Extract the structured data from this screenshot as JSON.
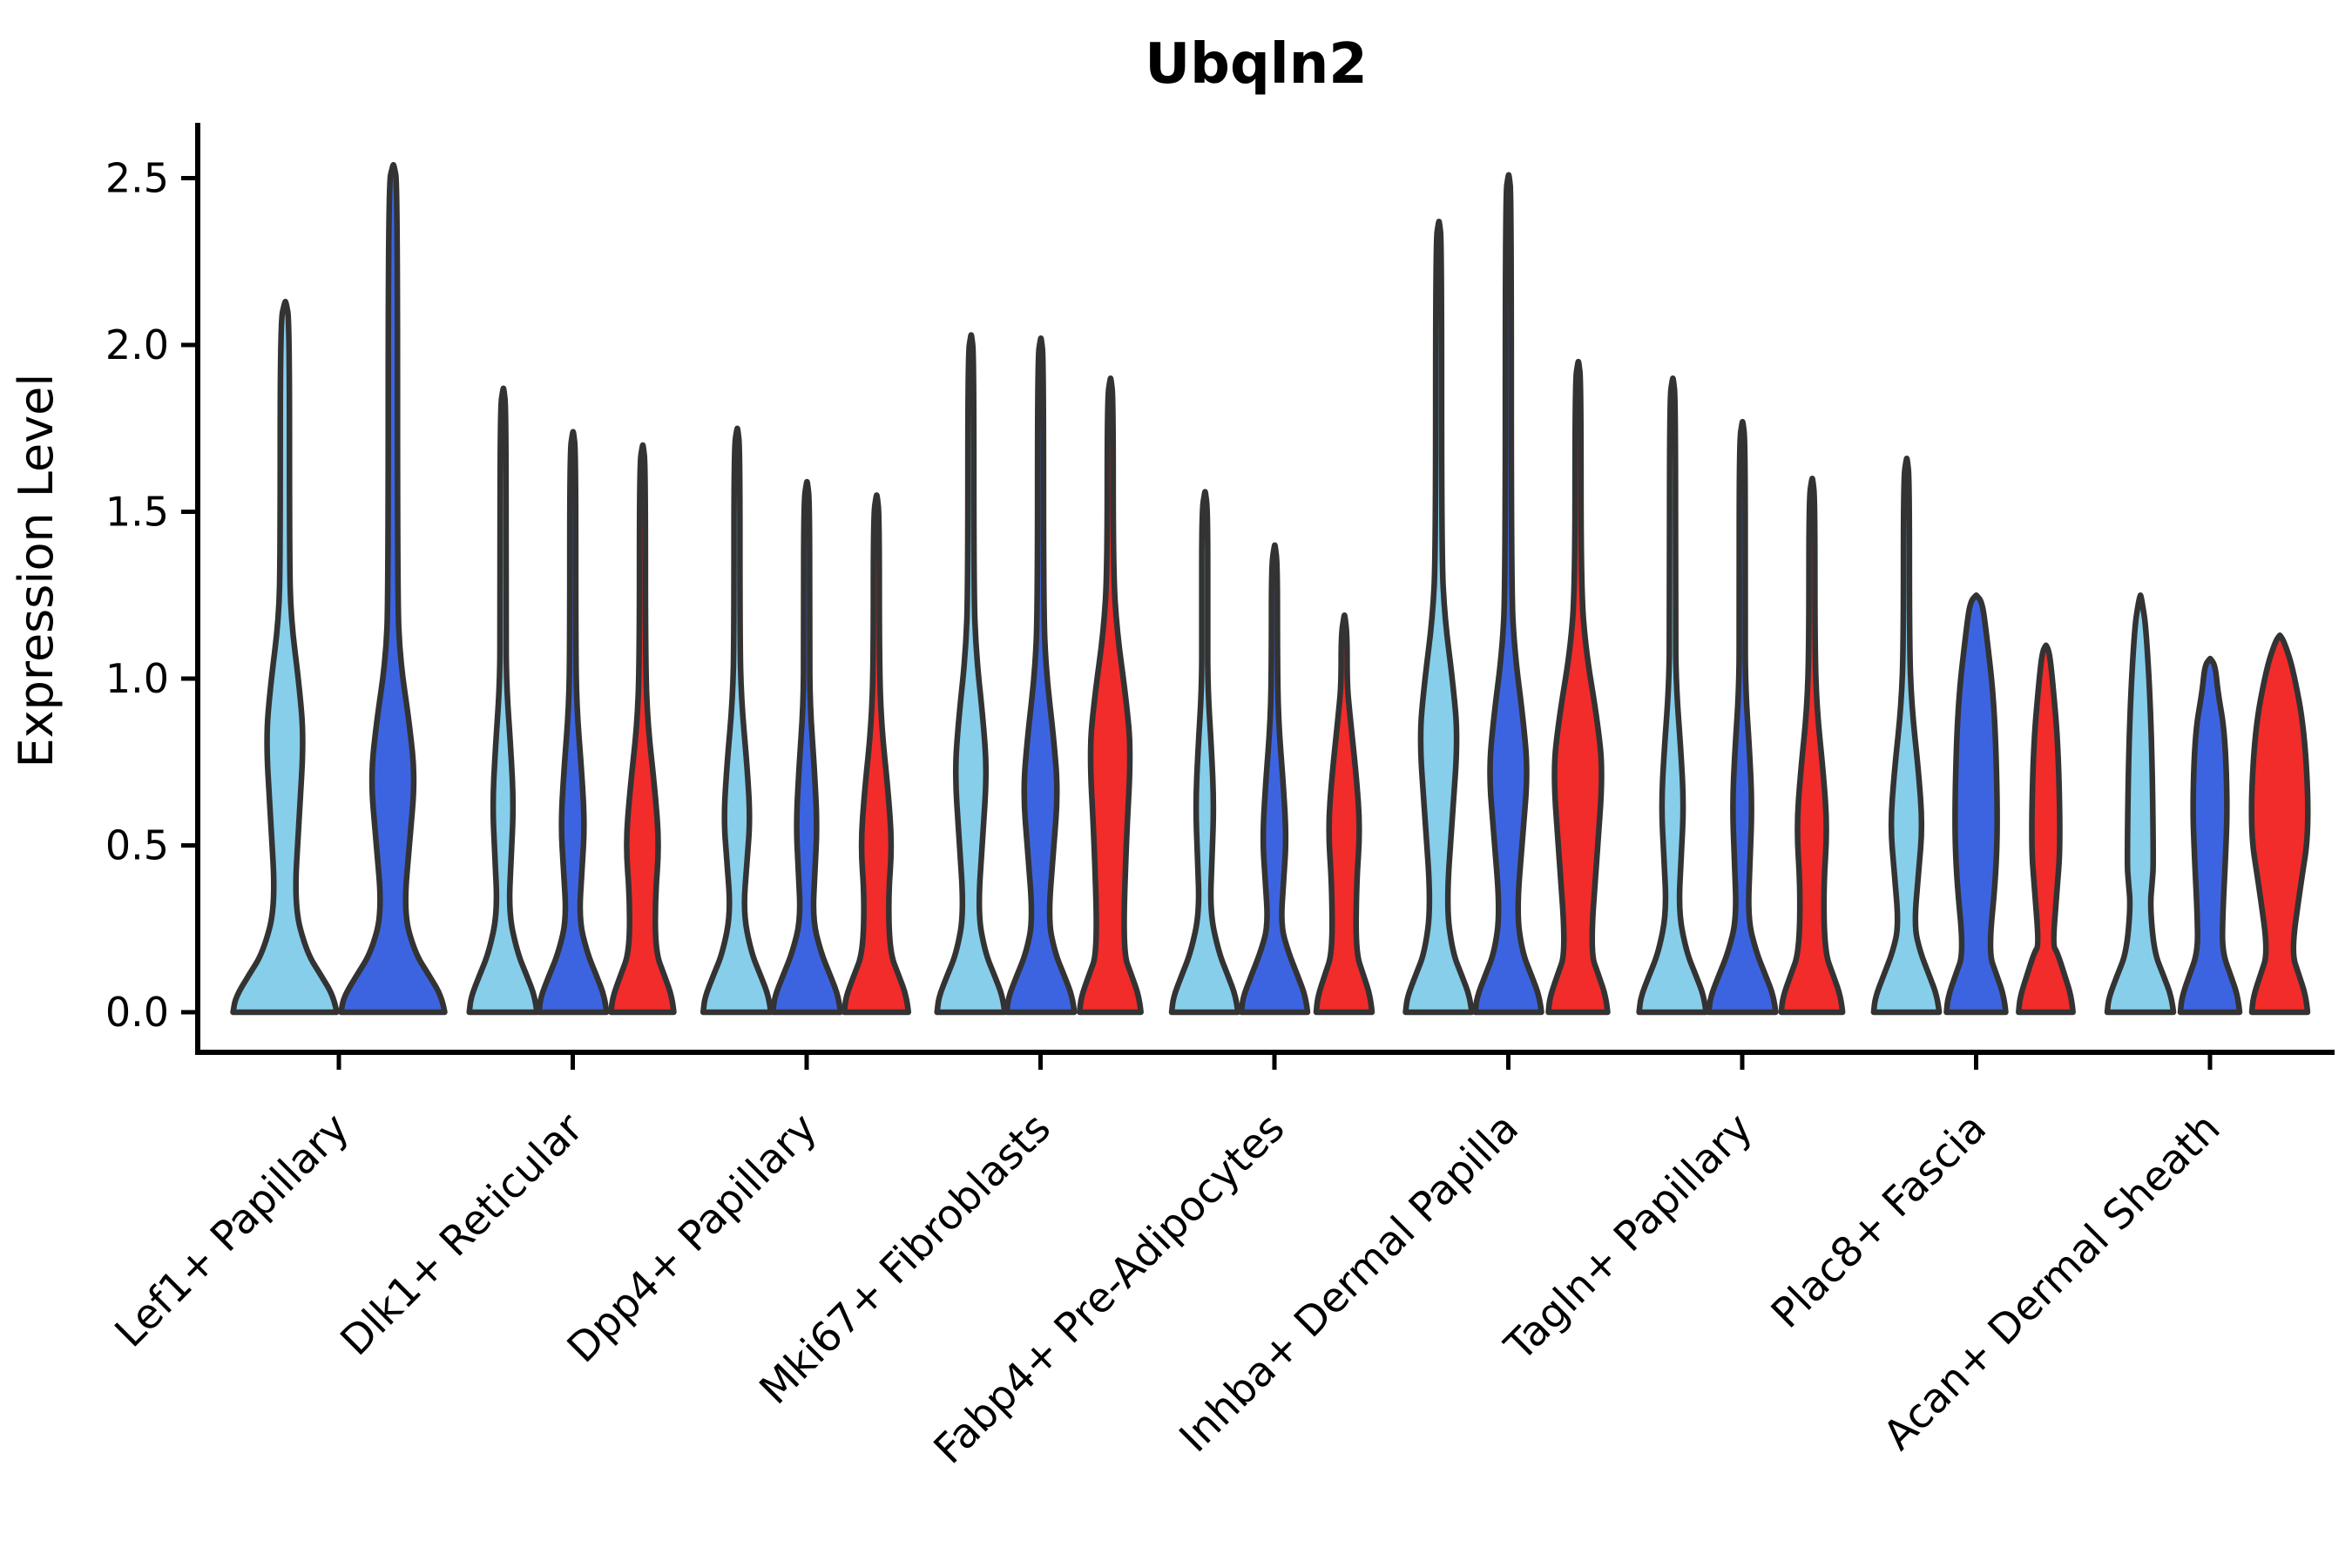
{
  "title": "Ubqln2",
  "axes": {
    "ylabel": "Expression Level",
    "yticklabels": [
      "0.0",
      "0.5",
      "1.0",
      "1.5",
      "2.0",
      "2.5"
    ]
  },
  "colors": {
    "split_light_blue": "#87CEEB",
    "split_royal_blue": "#3D64E0",
    "split_red": "#F22B2B",
    "violin_outline": "#333333",
    "axis": "#000000"
  },
  "chart_data": {
    "type": "violin",
    "title": "Ubqln2",
    "xlabel": "",
    "ylabel": "Expression Level",
    "ylim": [
      0,
      2.65
    ],
    "yticks": [
      0,
      0.5,
      1.0,
      1.5,
      2.0,
      2.5
    ],
    "grid": false,
    "legend": "none",
    "categories": [
      "Lef1+ Papillary",
      "Dlk1+ Reticular",
      "Dpp4+ Papillary",
      "Mki67+ Fibroblasts",
      "Fabp4+ Pre-Adipocytes",
      "Inhba+ Dermal Papilla",
      "Tagln+ Papillary",
      "Plac8+ Fascia",
      "Acan+ Dermal Sheath"
    ],
    "splits": [
      "split-1",
      "split-2",
      "split-3"
    ],
    "split_colors": [
      "#87CEEB",
      "#3D64E0",
      "#F22B2B"
    ],
    "note": "Each violin: max = maximum expression level (top of violin); midC/midW = center and relative half-width of mid bulge; pinchV/pinchW = waist position and width; bottomW = relative half-width of base blob at 0; topW>0 means blunt rounded top.",
    "groups": [
      {
        "category": "Lef1+ Papillary",
        "violins": [
          {
            "split": "split-1",
            "color": "#87CEEB",
            "max": 2.13,
            "midC": 0.82,
            "midW": 0.35,
            "pinchV": 0.32,
            "pinchW": 0.17,
            "bottomW": 0.96,
            "topW": 0
          },
          {
            "split": "split-2",
            "color": "#3D64E0",
            "max": 2.54,
            "midC": 0.7,
            "midW": 0.41,
            "pinchV": 0.3,
            "pinchW": 0.2,
            "bottomW": 0.96,
            "topW": 0
          }
        ]
      },
      {
        "category": "Dlk1+ Reticular",
        "violins": [
          {
            "split": "split-1",
            "color": "#87CEEB",
            "max": 1.87,
            "midC": 0.62,
            "midW": 0.3,
            "pinchV": 0.3,
            "pinchW": 0.16,
            "bottomW": 0.97,
            "topW": 0
          },
          {
            "split": "split-2",
            "color": "#3D64E0",
            "max": 1.74,
            "midC": 0.56,
            "midW": 0.34,
            "pinchV": 0.28,
            "pinchW": 0.18,
            "bottomW": 0.97,
            "topW": 0
          },
          {
            "split": "split-3",
            "color": "#F22B2B",
            "max": 1.7,
            "midC": 0.5,
            "midW": 0.48,
            "pinchV": 0.15,
            "pinchW": 0.22,
            "bottomW": 0.9,
            "topW": 0
          }
        ]
      },
      {
        "category": "Dpp4+ Papillary",
        "violins": [
          {
            "split": "split-1",
            "color": "#87CEEB",
            "max": 1.75,
            "midC": 0.58,
            "midW": 0.38,
            "pinchV": 0.3,
            "pinchW": 0.18,
            "bottomW": 0.97,
            "topW": 0
          },
          {
            "split": "split-2",
            "color": "#3D64E0",
            "max": 1.59,
            "midC": 0.56,
            "midW": 0.3,
            "pinchV": 0.28,
            "pinchW": 0.17,
            "bottomW": 0.97,
            "topW": 0
          },
          {
            "split": "split-3",
            "color": "#F22B2B",
            "max": 1.55,
            "midC": 0.5,
            "midW": 0.45,
            "pinchV": 0.16,
            "pinchW": 0.21,
            "bottomW": 0.92,
            "topW": 0
          }
        ]
      },
      {
        "category": "Mki67+ Fibroblasts",
        "violins": [
          {
            "split": "split-1",
            "color": "#87CEEB",
            "max": 2.03,
            "midC": 0.72,
            "midW": 0.46,
            "pinchV": 0.3,
            "pinchW": 0.2,
            "bottomW": 0.97,
            "topW": 0
          },
          {
            "split": "split-2",
            "color": "#3D64E0",
            "max": 2.02,
            "midC": 0.66,
            "midW": 0.5,
            "pinchV": 0.28,
            "pinchW": 0.22,
            "bottomW": 0.97,
            "topW": 0
          },
          {
            "split": "split-3",
            "color": "#F22B2B",
            "max": 1.9,
            "midC": 0.78,
            "midW": 0.6,
            "pinchV": 0.15,
            "pinchW": 0.27,
            "bottomW": 0.88,
            "topW": 0
          }
        ]
      },
      {
        "category": "Fabp4+ Pre-Adipocytes",
        "violins": [
          {
            "split": "split-1",
            "color": "#87CEEB",
            "max": 1.56,
            "midC": 0.62,
            "midW": 0.26,
            "pinchV": 0.3,
            "pinchW": 0.15,
            "bottomW": 0.95,
            "topW": 0
          },
          {
            "split": "split-2",
            "color": "#3D64E0",
            "max": 1.4,
            "midC": 0.52,
            "midW": 0.34,
            "pinchV": 0.26,
            "pinchW": 0.18,
            "bottomW": 0.95,
            "topW": 0
          },
          {
            "split": "split-3",
            "color": "#F22B2B",
            "max": 1.19,
            "midC": 0.55,
            "midW": 0.46,
            "pinchV": 0.18,
            "pinchW": 0.22,
            "bottomW": 0.8,
            "topW": 0
          }
        ]
      },
      {
        "category": "Inhba+ Dermal Papilla",
        "violins": [
          {
            "split": "split-1",
            "color": "#87CEEB",
            "max": 2.37,
            "midC": 0.82,
            "midW": 0.55,
            "pinchV": 0.32,
            "pinchW": 0.22,
            "bottomW": 0.95,
            "topW": 0
          },
          {
            "split": "split-2",
            "color": "#3D64E0",
            "max": 2.51,
            "midC": 0.72,
            "midW": 0.56,
            "pinchV": 0.3,
            "pinchW": 0.24,
            "bottomW": 0.95,
            "topW": 0
          },
          {
            "split": "split-3",
            "color": "#F22B2B",
            "max": 1.95,
            "midC": 0.72,
            "midW": 0.72,
            "pinchV": 0.13,
            "pinchW": 0.3,
            "bottomW": 0.85,
            "topW": 0
          }
        ]
      },
      {
        "category": "Tagln+ Papillary",
        "violins": [
          {
            "split": "split-1",
            "color": "#87CEEB",
            "max": 1.9,
            "midC": 0.62,
            "midW": 0.32,
            "pinchV": 0.3,
            "pinchW": 0.17,
            "bottomW": 0.96,
            "topW": 0
          },
          {
            "split": "split-2",
            "color": "#3D64E0",
            "max": 1.77,
            "midC": 0.62,
            "midW": 0.28,
            "pinchV": 0.28,
            "pinchW": 0.16,
            "bottomW": 0.96,
            "topW": 0
          },
          {
            "split": "split-3",
            "color": "#F22B2B",
            "max": 1.6,
            "midC": 0.55,
            "midW": 0.44,
            "pinchV": 0.16,
            "pinchW": 0.2,
            "bottomW": 0.88,
            "topW": 0
          }
        ]
      },
      {
        "category": "Plac8+ Fascia",
        "violins": [
          {
            "split": "split-1",
            "color": "#87CEEB",
            "max": 1.66,
            "midC": 0.56,
            "midW": 0.46,
            "pinchV": 0.26,
            "pinchW": 0.22,
            "bottomW": 0.94,
            "topW": 0
          },
          {
            "split": "split-2",
            "color": "#3D64E0",
            "max": 1.25,
            "midC": 0.6,
            "midW": 0.62,
            "pinchV": 0.18,
            "pinchW": 0.48,
            "bottomW": 0.85,
            "topW": 0.17
          },
          {
            "split": "split-3",
            "color": "#F22B2B",
            "max": 1.1,
            "midC": 0.5,
            "midW": 0.42,
            "pinchV": 0.2,
            "pinchW": 0.2,
            "bottomW": 0.78,
            "topW": 0.1
          }
        ]
      },
      {
        "category": "Acan+ Dermal Sheath",
        "violins": [
          {
            "split": "split-1",
            "color": "#87CEEB",
            "max": 1.25,
            "midC": 0.45,
            "midW": 0.38,
            "pinchV": 0.32,
            "pinchW": 0.28,
            "bottomW": 0.95,
            "topW": 0.05
          },
          {
            "split": "split-2",
            "color": "#3D64E0",
            "max": 1.06,
            "midC": 0.62,
            "midW": 0.5,
            "pinchV": 0.28,
            "pinchW": 0.36,
            "bottomW": 0.85,
            "topW": 0.15
          },
          {
            "split": "split-3",
            "color": "#F22B2B",
            "max": 1.13,
            "midC": 0.55,
            "midW": 0.85,
            "pinchV": 0.17,
            "pinchW": 0.3,
            "bottomW": 0.8,
            "topW": 0.13
          }
        ]
      }
    ]
  }
}
